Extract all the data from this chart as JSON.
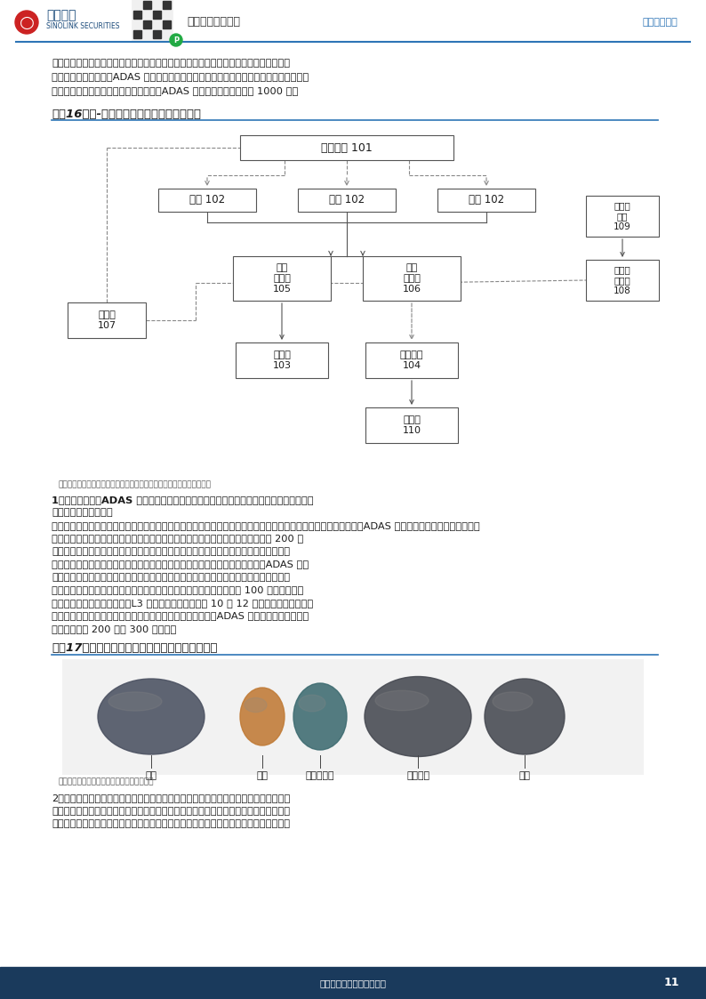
{
  "page_bg": "#ffffff",
  "footer_bg": "#1a3a5c",
  "header_line_color": "#2e75b6",
  "header_right_text": "行业深度研究",
  "fig16_title": "图表16：液-气混合激光雷达清洁系统结构图",
  "fig16_source": "来源：《激光雷达清洗系统、方法、设备及存储介质》，国金证券研究所",
  "fig17_title": "图表17：清洗泵是激光雷达清洗系统主要组成部分",
  "fig17_source": "来源：恒帅股份招股说明书，国金证券研究所",
  "footer_text": "敬请参阅最后一页特别声明",
  "page_number": "11",
  "component_labels": [
    "壳体",
    "叶轮",
    "密封座组件",
    "清洗电机",
    "端盖"
  ],
  "body1_lines": [
    "传感器清洗系统适配未来高级别自动驾驶领域，产品构成主要包括智能清洗泵、液罐、管",
    "路、电磁阀、喷嘴等。ADAS 系统的传感器数量较多，需要清洗的点位会远多于传统清洗系",
    "统，因而相关产品结构会更为复杂精密，ADAS 清洗系统单车价值量约 1000 元。"
  ],
  "body2_bold1": "1）智能清洗泵：ADAS 传感器清洗产品的核心部件，主要由清洗电机、端盖、壳体、叶轮",
  "body2_bold2": "和其他配件组装而成。",
  "body2_normal": [
    "清洗泵负责将洗涤液从洗涤液罐中抽出，通过管路系统及喷嘴，将洗涤液喷射到指定位置。随着传感器的配置增多，ADAS 传感器清洗系统中的清洗泵智能",
    "化要求程度较高、同时需要保证体积更小、输出扭矩更大。单个清洗泵的价值量在 200 元",
    "左右，全车根据传感器数量安装不同数目的清洗泵产品，主要供应商有恒帅股份、大陆集",
    "团等。更智能化的清洗泵是单车价值量上升的主要原因，相较于传统清洗系统，ADAS 传感",
    "器清洗系统所覆盖的清洗点位多且分散，洁净度要求高。传统汽车清洗泵通常为单通或双",
    "通清洗泵，仅用于前后挡风玻璃和大灯清洗，传统清洗泵单个价值量在 100 元左右。智能",
    "驾驶汽车有多个传感器窗口，L3 级自动驾驶汽车普遍有 10 到 12 个外置传感器窗口需要",
    "清洗，清洗的系统更加复杂，也需要更加智能化的清洁能力，ADAS 清洁系统的智能清洗泵",
    "单个价格量在 200 元到 300 元之间。"
  ],
  "body3_lines": [
    "2）电磁阀门：一般有电磁开关阀和电磁切换阀两种。电磁开关阀可以在喷嘴附近接阵列",
    "排布，也可以放置在车辆集中位置的管汇中，以最有效的方式将流体分配到多个清洗喷嘴",
    "上。电磁切换阀可以选择性清洗，简化清洗流体布线，减少管道和泵数量，并降低功耗。"
  ]
}
